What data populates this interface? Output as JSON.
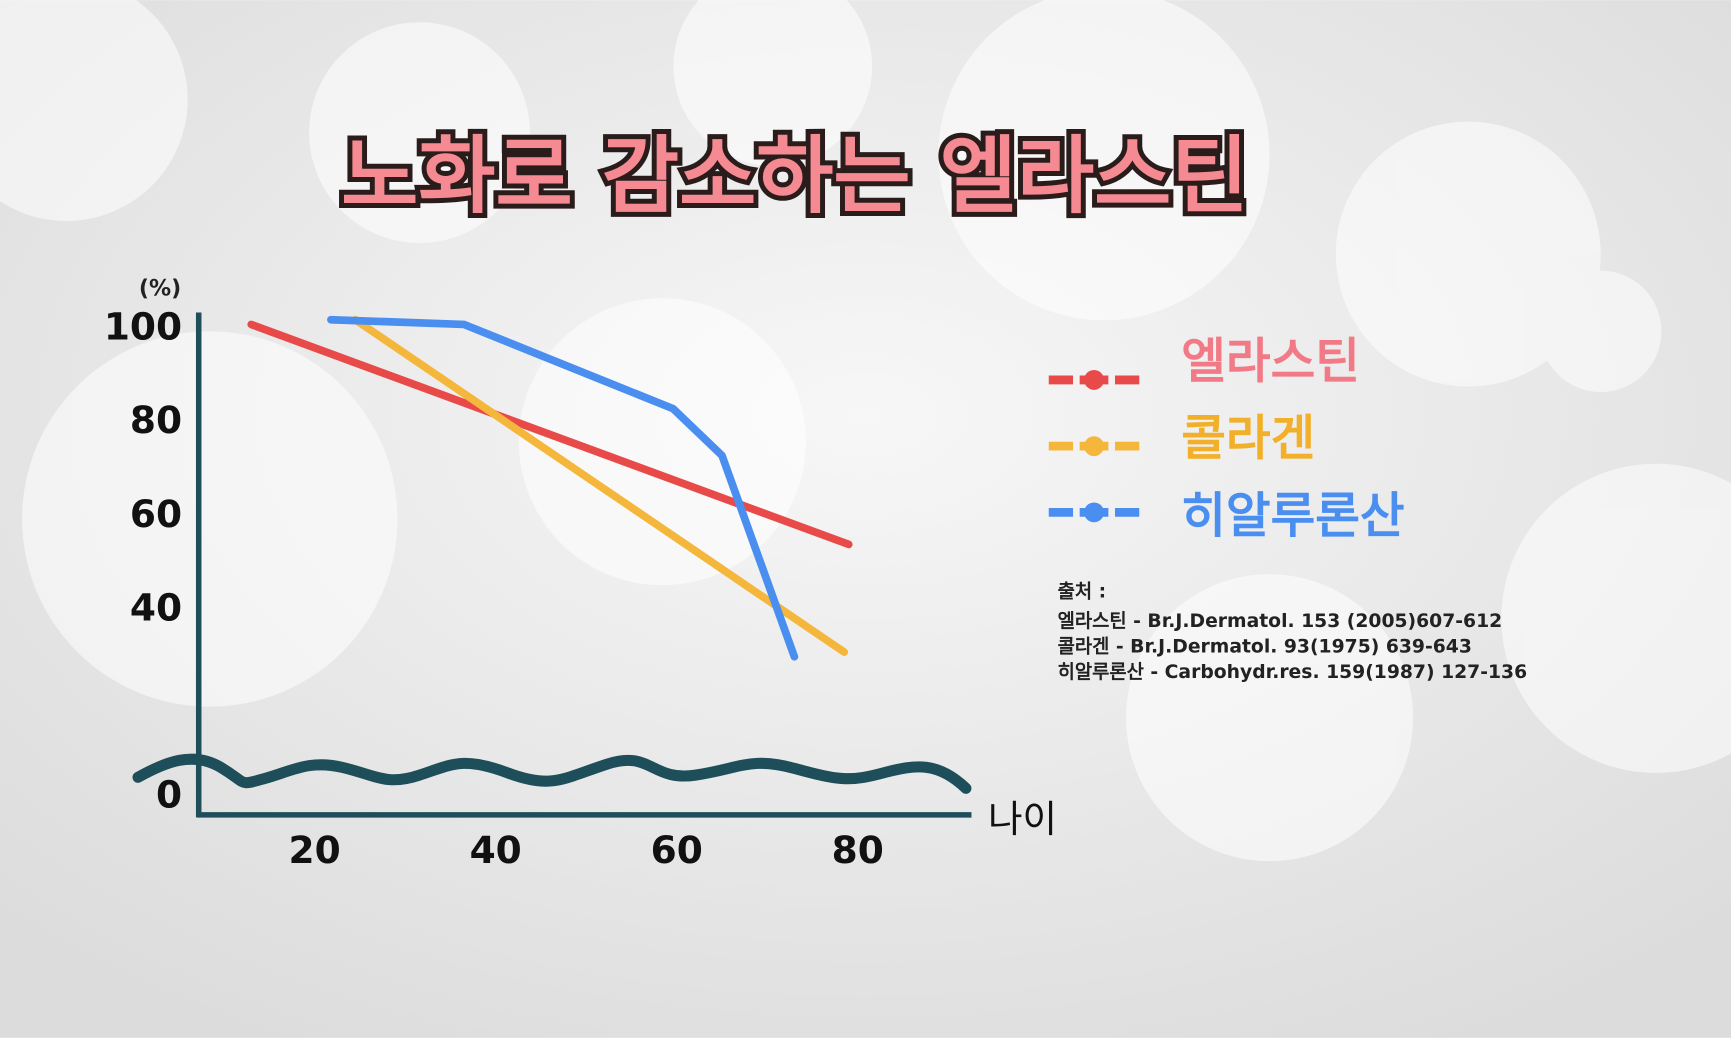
{
  "chart_data": {
    "type": "line",
    "title": "노화로 감소하는 엘라스틴",
    "y_label": "(%)",
    "x_label": "나이",
    "xlim": [
      7,
      92
    ],
    "xticks": [
      20,
      40,
      60,
      80
    ],
    "ylim": [
      0,
      100
    ],
    "yticks": [
      0,
      40,
      60,
      80,
      100
    ],
    "series": [
      {
        "name": "엘라스틴",
        "color": "#e84a4a",
        "x": [
          13,
          79
        ],
        "values": [
          101,
          54
        ]
      },
      {
        "name": "콜라겐",
        "color": "#f5b63c",
        "x": [
          24.5,
          78.5
        ],
        "values": [
          102,
          31
        ]
      },
      {
        "name": "히알루론산",
        "color": "#4a8ef0",
        "x": [
          21.8,
          36.5,
          59.6,
          65,
          73
        ],
        "values": [
          102,
          101,
          83,
          73,
          30
        ]
      }
    ],
    "legend_text_colors": [
      "#f27a86",
      "#f2b02a",
      "#4a8ef0"
    ],
    "source": {
      "title": "출처 :",
      "lines": [
        "엘라스틴 - Br.J.Dermatol. 153 (2005)607-612",
        "콜라겐 - Br.J.Dermatol. 93(1975) 639-643",
        "히알루론산 - Carbohydr.res. 159(1987) 127-136"
      ]
    }
  }
}
